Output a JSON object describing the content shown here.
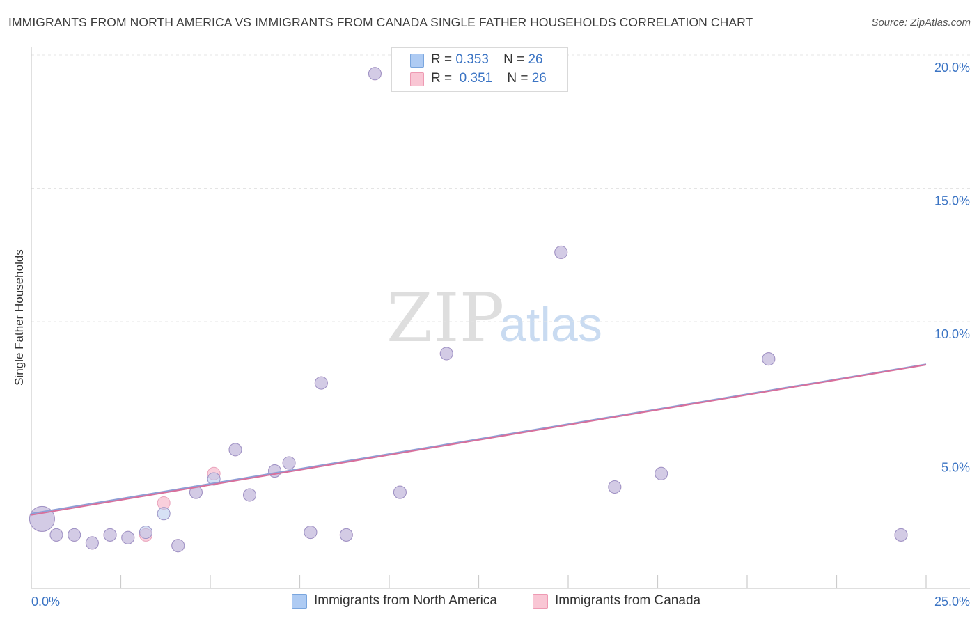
{
  "header": {
    "title": "IMMIGRANTS FROM NORTH AMERICA VS IMMIGRANTS FROM CANADA SINGLE FATHER HOUSEHOLDS CORRELATION CHART",
    "source": "Source: ZipAtlas.com"
  },
  "watermark": {
    "zip": "ZIP",
    "atlas": "atlas"
  },
  "legend": {
    "series1": {
      "r_label": "R =",
      "r_value": "0.353",
      "n_label": "N =",
      "n_value": "26",
      "color": "#aecbf3"
    },
    "series2": {
      "r_label": "R =",
      "r_value": "0.351",
      "n_label": "N =",
      "n_value": "26",
      "color": "#f9c6d4"
    }
  },
  "bottom_legend": {
    "series1": "Immigrants from North America",
    "series2": "Immigrants from Canada"
  },
  "chart_data": {
    "type": "scatter",
    "title": "IMMIGRANTS FROM NORTH AMERICA VS IMMIGRANTS FROM CANADA SINGLE FATHER HOUSEHOLDS CORRELATION CHART",
    "xlabel": "",
    "ylabel": "Single Father Households",
    "xlim": [
      0,
      25
    ],
    "ylim": [
      0,
      20
    ],
    "x_tick_labels": [
      "0.0%",
      "25.0%"
    ],
    "y_tick_labels": [
      "20.0%",
      "15.0%",
      "10.0%",
      "5.0%"
    ],
    "y_ticks": [
      20,
      15,
      10,
      5
    ],
    "grid": true,
    "series": [
      {
        "name": "Immigrants from North America",
        "color": "#aecbf3",
        "trend": {
          "x": [
            0,
            25
          ],
          "y": [
            2.8,
            8.4
          ]
        },
        "points": [
          {
            "x": 0.3,
            "y": 2.6,
            "s": 2.0
          },
          {
            "x": 0.7,
            "y": 2.0,
            "s": 1
          },
          {
            "x": 1.2,
            "y": 2.0,
            "s": 1
          },
          {
            "x": 1.7,
            "y": 1.7,
            "s": 1
          },
          {
            "x": 2.2,
            "y": 2.0,
            "s": 1
          },
          {
            "x": 2.7,
            "y": 1.9,
            "s": 1
          },
          {
            "x": 3.2,
            "y": 2.1,
            "s": 1
          },
          {
            "x": 3.7,
            "y": 2.8,
            "s": 1
          },
          {
            "x": 4.1,
            "y": 1.6,
            "s": 1
          },
          {
            "x": 4.6,
            "y": 3.6,
            "s": 1
          },
          {
            "x": 5.1,
            "y": 4.1,
            "s": 1
          },
          {
            "x": 5.7,
            "y": 5.2,
            "s": 1
          },
          {
            "x": 6.1,
            "y": 3.5,
            "s": 1
          },
          {
            "x": 6.8,
            "y": 4.4,
            "s": 1
          },
          {
            "x": 7.2,
            "y": 4.7,
            "s": 1
          },
          {
            "x": 7.8,
            "y": 2.1,
            "s": 1
          },
          {
            "x": 8.1,
            "y": 7.7,
            "s": 1
          },
          {
            "x": 8.8,
            "y": 2.0,
            "s": 1
          },
          {
            "x": 9.6,
            "y": 19.3,
            "s": 1
          },
          {
            "x": 10.3,
            "y": 3.6,
            "s": 1
          },
          {
            "x": 11.6,
            "y": 8.8,
            "s": 1
          },
          {
            "x": 14.8,
            "y": 12.6,
            "s": 1
          },
          {
            "x": 16.3,
            "y": 3.8,
            "s": 1
          },
          {
            "x": 17.6,
            "y": 4.3,
            "s": 1
          },
          {
            "x": 20.6,
            "y": 8.6,
            "s": 1
          },
          {
            "x": 24.3,
            "y": 2.0,
            "s": 1
          }
        ]
      },
      {
        "name": "Immigrants from Canada",
        "color": "#f9c6d4",
        "trend": {
          "x": [
            0,
            25
          ],
          "y": [
            2.75,
            8.38
          ]
        },
        "points": [
          {
            "x": 0.3,
            "y": 2.6,
            "s": 2.0
          },
          {
            "x": 0.7,
            "y": 2.0,
            "s": 1
          },
          {
            "x": 1.2,
            "y": 2.0,
            "s": 1
          },
          {
            "x": 1.7,
            "y": 1.7,
            "s": 1
          },
          {
            "x": 2.2,
            "y": 2.0,
            "s": 1
          },
          {
            "x": 2.7,
            "y": 1.9,
            "s": 1
          },
          {
            "x": 3.2,
            "y": 2.0,
            "s": 1
          },
          {
            "x": 3.7,
            "y": 3.2,
            "s": 1
          },
          {
            "x": 4.1,
            "y": 1.6,
            "s": 1
          },
          {
            "x": 4.6,
            "y": 3.6,
            "s": 1
          },
          {
            "x": 5.1,
            "y": 4.3,
            "s": 1
          },
          {
            "x": 5.7,
            "y": 5.2,
            "s": 1
          },
          {
            "x": 6.1,
            "y": 3.5,
            "s": 1
          },
          {
            "x": 6.8,
            "y": 4.4,
            "s": 1
          },
          {
            "x": 7.2,
            "y": 4.7,
            "s": 1
          },
          {
            "x": 7.8,
            "y": 2.1,
            "s": 1
          },
          {
            "x": 8.1,
            "y": 7.7,
            "s": 1
          },
          {
            "x": 8.8,
            "y": 2.0,
            "s": 1
          },
          {
            "x": 9.6,
            "y": 19.3,
            "s": 1
          },
          {
            "x": 10.3,
            "y": 3.6,
            "s": 1
          },
          {
            "x": 11.6,
            "y": 8.8,
            "s": 1
          },
          {
            "x": 14.8,
            "y": 12.6,
            "s": 1
          },
          {
            "x": 16.3,
            "y": 3.8,
            "s": 1
          },
          {
            "x": 17.6,
            "y": 4.3,
            "s": 1
          },
          {
            "x": 20.6,
            "y": 8.6,
            "s": 1
          },
          {
            "x": 24.3,
            "y": 2.0,
            "s": 1
          }
        ]
      }
    ]
  }
}
